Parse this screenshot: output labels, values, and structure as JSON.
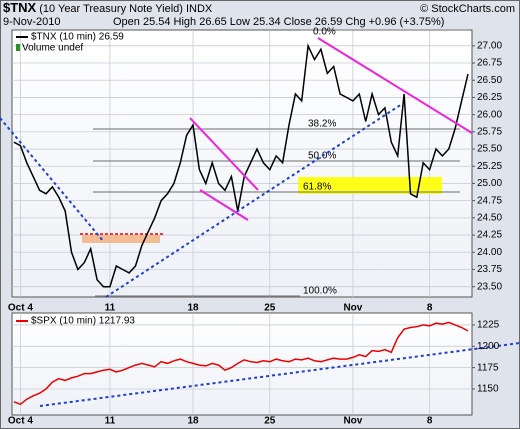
{
  "header": {
    "symbol": "$TNX",
    "description": "(10 Year Treasury Note Yield) INDX",
    "date": "9-Nov-2010",
    "quote": "Open 25.54 High 26.65 Low 25.34 Close 26.59 Chg +0.96 (+3.75%)",
    "credit": "© StockCharts.com"
  },
  "chart_data": [
    {
      "type": "line",
      "grid": true,
      "notes": [
        "Volume undef"
      ],
      "annotations": [
        "0.0%",
        "38.2%",
        "50.0%",
        "61.8%",
        "100.0%"
      ],
      "categories": [
        null,
        "Oct 4",
        null,
        null,
        null,
        null,
        null,
        null,
        null,
        null,
        null,
        null,
        null,
        null,
        null,
        "11",
        null,
        null,
        null,
        null,
        null,
        null,
        null,
        null,
        null,
        null,
        null,
        null,
        "18",
        null,
        null,
        null,
        null,
        null,
        null,
        null,
        null,
        null,
        null,
        null,
        "25",
        null,
        null,
        null,
        null,
        null,
        null,
        null,
        null,
        null,
        null,
        null,
        null,
        "Nov",
        null,
        null,
        null,
        null,
        null,
        null,
        null,
        null,
        null,
        null,
        null,
        "8",
        null,
        null,
        null,
        null,
        null,
        null
      ],
      "series": [
        {
          "name": "$TNX (10 min) 26.59",
          "color": "#000000",
          "values": [
            25.6,
            25.55,
            25.3,
            25.1,
            24.9,
            24.85,
            24.95,
            24.8,
            24.6,
            24.0,
            23.75,
            23.85,
            24.05,
            23.6,
            23.5,
            23.5,
            23.8,
            23.75,
            23.7,
            23.8,
            24.1,
            24.3,
            24.5,
            24.75,
            24.85,
            25.0,
            25.3,
            25.7,
            25.85,
            25.2,
            25.0,
            25.3,
            25.0,
            24.9,
            25.1,
            24.6,
            25.1,
            25.3,
            25.5,
            25.3,
            25.2,
            25.4,
            25.3,
            25.85,
            26.3,
            26.2,
            27.0,
            26.8,
            26.95,
            26.6,
            26.7,
            26.3,
            26.25,
            26.2,
            26.3,
            25.9,
            26.3,
            26.0,
            26.1,
            25.6,
            25.4,
            26.3,
            24.85,
            24.8,
            25.3,
            25.2,
            25.5,
            25.4,
            25.5,
            25.8,
            26.2,
            26.59
          ]
        }
      ],
      "ylim": [
        23.35,
        27.23
      ],
      "yticks": [
        {
          "value": 23.5,
          "label": "23.50"
        },
        {
          "value": 23.75,
          "label": "23.75"
        },
        {
          "value": 24,
          "label": "24.00"
        },
        {
          "value": 24.25,
          "label": "24.25"
        },
        {
          "value": 24.5,
          "label": "24.50"
        },
        {
          "value": 24.75,
          "label": "24.75"
        },
        {
          "value": 25,
          "label": "25.00"
        },
        {
          "value": 25.25,
          "label": "25.25"
        },
        {
          "value": 25.5,
          "label": "25.50"
        },
        {
          "value": 25.75,
          "label": "25.75"
        },
        {
          "value": 26,
          "label": "26.00"
        },
        {
          "value": 26.25,
          "label": "26.25"
        },
        {
          "value": 26.5,
          "label": "26.50"
        },
        {
          "value": 26.75,
          "label": "26.75"
        },
        {
          "value": 27,
          "label": "27.00"
        }
      ]
    },
    {
      "type": "line",
      "grid": true,
      "categories": [
        null,
        "Oct 4",
        null,
        null,
        null,
        null,
        null,
        null,
        null,
        null,
        null,
        null,
        null,
        null,
        null,
        "11",
        null,
        null,
        null,
        null,
        null,
        null,
        null,
        null,
        null,
        null,
        null,
        null,
        "18",
        null,
        null,
        null,
        null,
        null,
        null,
        null,
        null,
        null,
        null,
        null,
        "25",
        null,
        null,
        null,
        null,
        null,
        null,
        null,
        null,
        null,
        null,
        null,
        null,
        "Nov",
        null,
        null,
        null,
        null,
        null,
        null,
        null,
        null,
        null,
        null,
        null,
        "8",
        null,
        null,
        null,
        null,
        null,
        null
      ],
      "series": [
        {
          "name": "$SPX (10 min) 1217.93",
          "color": "#ee0000",
          "values": [
            1135,
            1132,
            1138,
            1142,
            1145,
            1150,
            1158,
            1162,
            1160,
            1163,
            1165,
            1168,
            1168,
            1170,
            1172,
            1173,
            1170,
            1172,
            1175,
            1178,
            1180,
            1178,
            1176,
            1182,
            1180,
            1183,
            1185,
            1182,
            1180,
            1178,
            1177,
            1180,
            1178,
            1172,
            1175,
            1180,
            1184,
            1182,
            1181,
            1183,
            1182,
            1185,
            1183,
            1182,
            1185,
            1184,
            1186,
            1183,
            1182,
            1184,
            1186,
            1185,
            1185,
            1187,
            1190,
            1188,
            1195,
            1194,
            1196,
            1193,
            1210,
            1220,
            1222,
            1223,
            1225,
            1224,
            1227,
            1226,
            1228,
            1225,
            1222,
            1218
          ]
        }
      ],
      "ylim": [
        1119.5,
        1239
      ],
      "yticks": [
        1150,
        1175,
        1200,
        1225
      ]
    }
  ]
}
